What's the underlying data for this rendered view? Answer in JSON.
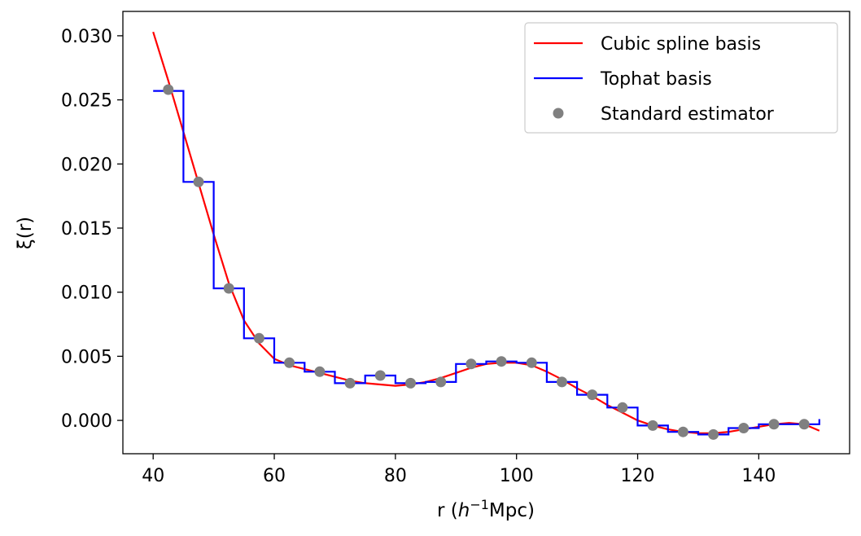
{
  "chart_data": {
    "type": "line",
    "xlabel_prefix": "r (",
    "xlabel_math": "h",
    "xlabel_sup": "−1",
    "xlabel_suffix": "Mpc)",
    "ylabel": "ξ(r)",
    "xlim": [
      35,
      155
    ],
    "ylim": [
      -0.0026,
      0.0319
    ],
    "xticks": [
      40,
      60,
      80,
      100,
      120,
      140
    ],
    "xtick_labels": [
      "40",
      "60",
      "80",
      "100",
      "120",
      "140"
    ],
    "yticks": [
      0.0,
      0.005,
      0.01,
      0.015,
      0.02,
      0.025,
      0.03
    ],
    "ytick_labels": [
      "0.000",
      "0.005",
      "0.010",
      "0.015",
      "0.020",
      "0.025",
      "0.030"
    ],
    "legend_position": "top-right",
    "grid": false,
    "series": [
      {
        "name": "Cubic spline basis",
        "kind": "line",
        "color": "#ff0000",
        "x": [
          40,
          42.5,
          45,
          47.5,
          50,
          52.5,
          55,
          57.5,
          60,
          62.5,
          65,
          67.5,
          70,
          72.5,
          75,
          77.5,
          80,
          82.5,
          85,
          87.5,
          90,
          92.5,
          95,
          97.5,
          100,
          102.5,
          105,
          107.5,
          110,
          112.5,
          115,
          117.5,
          120,
          122.5,
          125,
          127.5,
          130,
          132.5,
          135,
          137.5,
          140,
          142.5,
          145,
          147.5,
          150
        ],
        "y": [
          0.0303,
          0.0265,
          0.0225,
          0.0185,
          0.0145,
          0.0107,
          0.0078,
          0.006,
          0.0048,
          0.0043,
          0.004,
          0.0037,
          0.0034,
          0.0031,
          0.0029,
          0.0028,
          0.0027,
          0.0028,
          0.003,
          0.0033,
          0.0037,
          0.0041,
          0.0044,
          0.0045,
          0.0045,
          0.0043,
          0.0038,
          0.0032,
          0.0025,
          0.0019,
          0.0012,
          0.0006,
          0.0,
          -0.0004,
          -0.0007,
          -0.0009,
          -0.001,
          -0.001,
          -0.0009,
          -0.0007,
          -0.0005,
          -0.0003,
          -0.0002,
          -0.0003,
          -0.0008
        ]
      },
      {
        "name": "Tophat basis",
        "kind": "step",
        "color": "#0000ff",
        "edges": [
          40,
          45,
          50,
          55,
          60,
          65,
          70,
          75,
          80,
          85,
          90,
          95,
          100,
          105,
          110,
          115,
          120,
          125,
          130,
          135,
          140,
          145,
          150
        ],
        "values": [
          0.0257,
          0.0186,
          0.0103,
          0.0064,
          0.0045,
          0.0038,
          0.0029,
          0.0035,
          0.0029,
          0.003,
          0.0044,
          0.0046,
          0.0045,
          0.003,
          0.002,
          0.001,
          -0.0004,
          -0.0009,
          -0.0011,
          -0.0006,
          -0.0003,
          -0.0003
        ],
        "end_y": 0.0001
      },
      {
        "name": "Standard estimator",
        "kind": "scatter",
        "color": "#808080",
        "x": [
          42.5,
          47.5,
          52.5,
          57.5,
          62.5,
          67.5,
          72.5,
          77.5,
          82.5,
          87.5,
          92.5,
          97.5,
          102.5,
          107.5,
          112.5,
          117.5,
          122.5,
          127.5,
          132.5,
          137.5,
          142.5,
          147.5
        ],
        "y": [
          0.0258,
          0.0186,
          0.0103,
          0.0064,
          0.0045,
          0.0038,
          0.0029,
          0.0035,
          0.0029,
          0.003,
          0.0044,
          0.0046,
          0.0045,
          0.003,
          0.002,
          0.001,
          -0.0004,
          -0.0009,
          -0.0011,
          -0.0006,
          -0.0003,
          -0.0003
        ]
      }
    ]
  }
}
